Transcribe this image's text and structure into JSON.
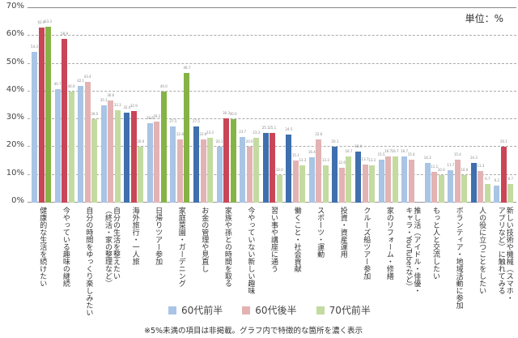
{
  "chart_data": {
    "type": "bar",
    "title": "",
    "unit_label": "単位：%",
    "xlabel": "",
    "ylabel": "",
    "ylim": [
      0,
      70
    ],
    "yticks": [
      "0%",
      "10%",
      "20%",
      "30%",
      "40%",
      "50%",
      "60%",
      "70%"
    ],
    "grid": true,
    "legend_position": "bottom",
    "categories": [
      "健康的な生活を続けたい",
      "今やっている趣味の継続",
      "自分の時間をゆっくり楽しみたい",
      "自分の生活を整えたい\n（終活・家の整理など）",
      "海外旅行・一人旅",
      "日帰りツアー参加",
      "家庭菜園・ガーデニング",
      "お金の管理や見直し",
      "家族や孫との時間を取る",
      "今やっていない新しい趣味",
      "習い事や講座に通う",
      "働くこと・社会貢献",
      "スポーツ・運動",
      "投資・資産運用",
      "クルーズ船ツアー参加",
      "家のリフォーム・修繕",
      "推し活（アイドル・俳優・\nキャラ・YouTuberなど）",
      "もっと人と交流したい",
      "ボランティア・地域活動に参加",
      "人の役に立つことをしたい",
      "新しい技術や機械（スマホ・\nアプリなど）に触れてみる"
    ],
    "series": [
      {
        "name": "60代前半",
        "color": "#a9c4e4",
        "highlight_color": "#3f6fae",
        "values": [
          54.3,
          40.7,
          42.1,
          35.1,
          32.4,
          28.6,
          27.5,
          27.5,
          20.1,
          23.7,
          25.1,
          24.5,
          16.4,
          20.1,
          18.4,
          15.5,
          16.7,
          14.3,
          11.7,
          14.3,
          6.2
        ],
        "highlighted": [
          false,
          false,
          false,
          false,
          true,
          false,
          false,
          true,
          false,
          false,
          true,
          true,
          false,
          true,
          true,
          false,
          false,
          false,
          false,
          true,
          false
        ]
      },
      {
        "name": "60代後半",
        "color": "#e3b3b4",
        "highlight_color": "#c94657",
        "values": [
          62.9,
          58.9,
          43.4,
          36.6,
          32.9,
          29.2,
          22.8,
          22.6,
          30.3,
          20.0,
          25.1,
          15.1,
          22.6,
          12.6,
          13.7,
          16.7,
          15.4,
          11.1,
          15.4,
          11.3,
          20.1
        ],
        "highlighted": [
          true,
          true,
          false,
          false,
          true,
          false,
          false,
          false,
          true,
          false,
          true,
          false,
          false,
          false,
          false,
          false,
          false,
          false,
          false,
          false,
          true
        ]
      },
      {
        "name": "70代前半",
        "color": "#c3dba0",
        "highlight_color": "#86b346",
        "values": [
          63.3,
          40.0,
          30.0,
          33.3,
          20.0,
          40.0,
          46.7,
          23.3,
          30.0,
          23.3,
          10.0,
          13.3,
          13.3,
          16.7,
          13.3,
          16.7,
          null,
          10.0,
          10.0,
          6.7,
          6.7
        ],
        "highlighted": [
          true,
          false,
          false,
          false,
          false,
          true,
          true,
          false,
          true,
          false,
          false,
          false,
          false,
          false,
          false,
          false,
          false,
          false,
          false,
          false,
          false
        ]
      }
    ]
  },
  "legend": {
    "items": [
      {
        "label": "60代前半",
        "color": "#a9c4e4"
      },
      {
        "label": "60代後半",
        "color": "#e3b3b4"
      },
      {
        "label": "70代前半",
        "color": "#c3dba0"
      }
    ]
  },
  "footnote": "※5%未満の項目は非掲載。グラフ内で特徴的な箇所を濃く表示"
}
